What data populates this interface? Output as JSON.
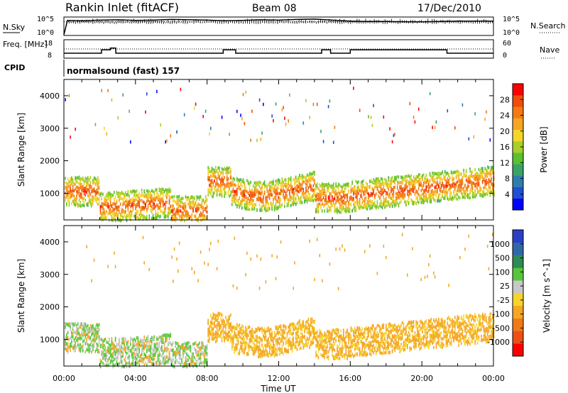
{
  "header": {
    "title": "Rankin Inlet (fitACF)",
    "beam": "Beam 08",
    "date": "17/Dec/2010"
  },
  "cpid_label": "CPID",
  "program": "normalsound (fast) 157",
  "chart_data": [
    {
      "type": "line",
      "left_label": "N.Sky",
      "right_label": "N.Search",
      "left_ticks": [
        "10^5",
        "10^0"
      ],
      "right_ticks": [
        "10^5",
        "10^0"
      ],
      "series": [
        {
          "name": "N.Sky",
          "style": "solid",
          "x_hours": [
            0,
            0.2,
            1,
            2,
            3,
            4,
            5,
            6,
            7,
            8,
            9,
            10,
            11,
            12,
            13,
            14,
            15,
            16,
            17,
            18,
            19,
            20,
            21,
            22,
            23,
            24
          ],
          "values_log10": [
            0,
            4.2,
            4.1,
            4.3,
            4.4,
            4.2,
            4.3,
            4.5,
            4.4,
            4.3,
            4.1,
            4.2,
            4.4,
            4.3,
            4.5,
            4.6,
            4.3,
            4.0,
            3.9,
            3.9,
            3.8,
            3.8,
            3.9,
            4.0,
            4.0,
            4.0
          ]
        },
        {
          "name": "N.Search",
          "style": "dotted",
          "x_hours": [
            0,
            24
          ],
          "values_log10": [
            3.8,
            3.8
          ]
        }
      ]
    },
    {
      "type": "line",
      "left_label": "Freq. [MHz]",
      "right_label": "Nave",
      "left_ticks": [
        "18",
        "8"
      ],
      "right_ticks": [
        "60",
        "0"
      ],
      "series": [
        {
          "name": "Freq.",
          "style": "solid",
          "x_hours": [
            0,
            2.1,
            2.1,
            2.6,
            2.6,
            2.9,
            2.9,
            8.9,
            8.9,
            9.6,
            9.6,
            14.4,
            14.4,
            14.9,
            14.9,
            16,
            16,
            21.4,
            21.4,
            24
          ],
          "values": [
            10.5,
            10.5,
            12.5,
            12.5,
            13.5,
            13.5,
            10.5,
            10.5,
            12.5,
            12.5,
            10.5,
            10.5,
            12.5,
            12.5,
            10.5,
            10.5,
            12.5,
            12.5,
            10.5,
            10.5
          ]
        },
        {
          "name": "Nave",
          "style": "dotted",
          "x_hours": [
            0,
            24
          ],
          "values": [
            30,
            30
          ]
        }
      ]
    },
    {
      "type": "heatmap",
      "parameter": "Power [dB]",
      "ylabel": "Slant Range [km]",
      "yticks": [
        "1000",
        "2000",
        "3000",
        "4000"
      ],
      "ylim": [
        180,
        4500
      ],
      "colorbar_ticks": [
        "4",
        "8",
        "12",
        "16",
        "20",
        "24",
        "28"
      ],
      "colors": [
        "#0000ff",
        "#1f4fd2",
        "#2f7dac",
        "#3aa365",
        "#5bc12e",
        "#a9cf27",
        "#f5d52a",
        "#f5a623",
        "#f47b12",
        "#f04d0c",
        "#ff0000"
      ]
    },
    {
      "type": "heatmap",
      "parameter": "Velocity [m s^-1]",
      "ylabel": "Slant Range [km]",
      "yticks": [
        "1000",
        "2000",
        "3000",
        "4000"
      ],
      "ylim": [
        180,
        4500
      ],
      "xlabel": "Time UT",
      "xticks": [
        "00:00",
        "04:00",
        "08:00",
        "12:00",
        "16:00",
        "20:00",
        "00:00"
      ],
      "colorbar_ticks": [
        "1000",
        "500",
        "100",
        "25",
        "-25",
        "-100",
        "-500",
        "-1000"
      ],
      "colors": [
        "#2b3fc5",
        "#2f68a8",
        "#2f8a56",
        "#55c83a",
        "#c8c8c8",
        "#f5d52a",
        "#f5a623",
        "#f07a18",
        "#ee5014",
        "#ff0000"
      ]
    }
  ]
}
